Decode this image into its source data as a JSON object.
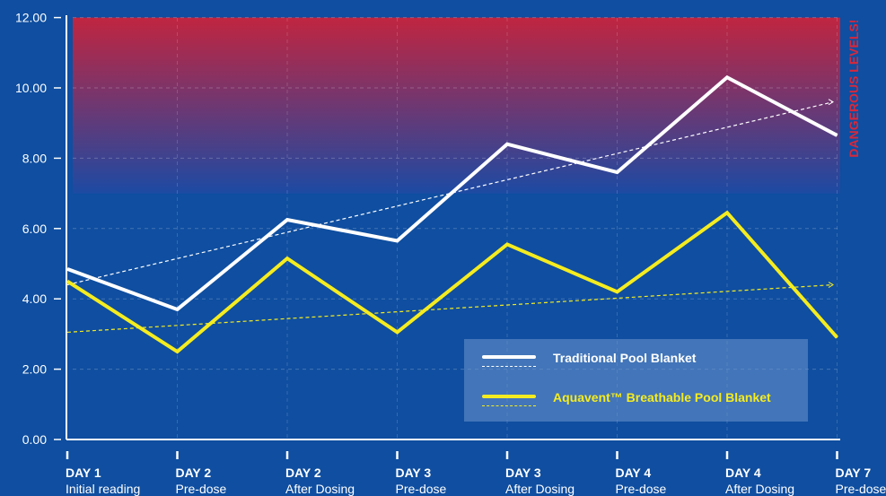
{
  "chart_data": {
    "type": "line",
    "ylim": [
      0,
      12
    ],
    "yticks": [
      "0.00",
      "2.00",
      "4.00",
      "6.00",
      "8.00",
      "10.00",
      "12.00"
    ],
    "categories": [
      {
        "day": "DAY 1",
        "sub": "Initial reading"
      },
      {
        "day": "DAY 2",
        "sub": "Pre-dose"
      },
      {
        "day": "DAY 2",
        "sub": "After Dosing"
      },
      {
        "day": "DAY 3",
        "sub": "Pre-dose"
      },
      {
        "day": "DAY 3",
        "sub": "After Dosing"
      },
      {
        "day": "DAY 4",
        "sub": "Pre-dose"
      },
      {
        "day": "DAY 4",
        "sub": "After Dosing"
      },
      {
        "day": "DAY 7",
        "sub": "Pre-dose"
      }
    ],
    "series": [
      {
        "name": "Traditional Pool Blanket",
        "color": "#ffffff",
        "values": [
          4.85,
          3.7,
          6.25,
          5.65,
          8.4,
          7.6,
          10.3,
          8.65
        ],
        "trend": [
          4.4,
          9.6
        ]
      },
      {
        "name": "Aquavent™ Breathable Pool Blanket",
        "color": "#f5ec1f",
        "values": [
          4.5,
          2.5,
          5.15,
          3.05,
          5.55,
          4.2,
          6.45,
          2.9
        ],
        "trend": [
          3.05,
          4.4
        ]
      }
    ],
    "danger_zone": {
      "from": 7,
      "to": 12,
      "label": "DANGEROUS LEVELS!",
      "color_top": "#c02540"
    },
    "grid": true,
    "legend_position": "bottom-right"
  },
  "legend": {
    "item1": "Traditional Pool Blanket",
    "item2": "Aquavent™ Breathable Pool Blanket"
  }
}
